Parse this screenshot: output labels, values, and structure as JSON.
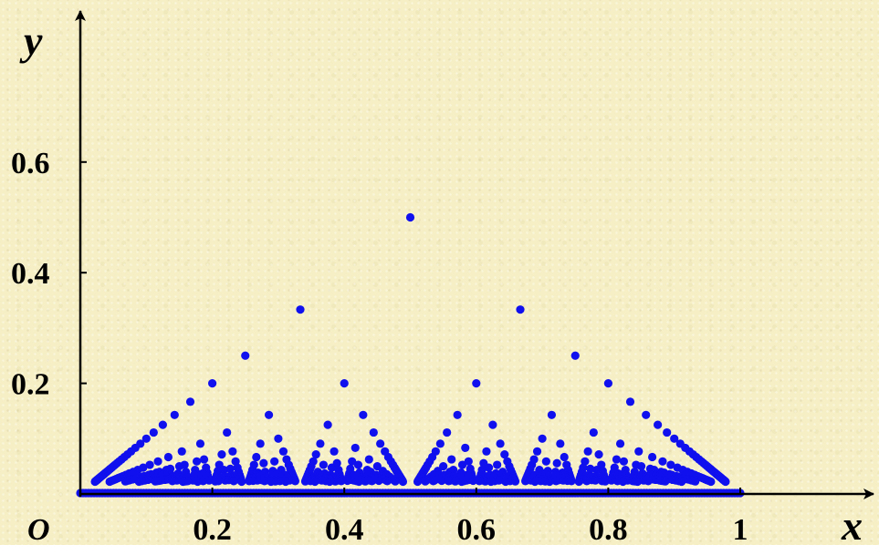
{
  "chart_data": {
    "type": "scatter",
    "title": "",
    "xlabel": "x",
    "ylabel": "y",
    "origin_label": "O",
    "xlim": [
      0,
      1.2
    ],
    "ylim": [
      0,
      0.75
    ],
    "x_ticks": [
      {
        "value": 0.2,
        "label": "0.2"
      },
      {
        "value": 0.4,
        "label": "0.4"
      },
      {
        "value": 0.6,
        "label": "0.6"
      },
      {
        "value": 0.8,
        "label": "0.8"
      },
      {
        "value": 1,
        "label": "1"
      }
    ],
    "y_ticks": [
      {
        "value": 0.2,
        "label": "0.2"
      },
      {
        "value": 0.4,
        "label": "0.4"
      },
      {
        "value": 0.6,
        "label": "0.6"
      }
    ],
    "grid": false,
    "legend": "none",
    "point_color": "#1010ee",
    "axis_color": "#000000",
    "background_color": "#f6efc6",
    "series": [
      {
        "description_of_values": "points (p/q, 1/q) for reduced fractions p/q in (0,1), q = 2..45 (Thomae function); plus a dense row of points along y = 0 for x in [0,1]",
        "max_denominator": 45,
        "baseline_row": {
          "y": 0,
          "x_from": 0,
          "x_to": 1
        }
      }
    ]
  }
}
